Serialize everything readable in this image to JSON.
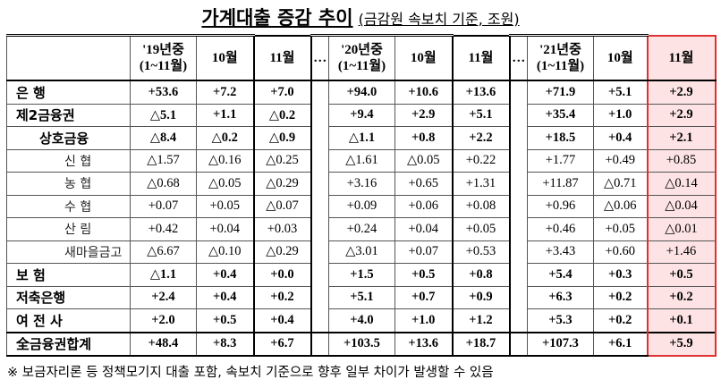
{
  "header": {
    "title": "가계대출 증감 추이",
    "subtitle": "(금감원 속보치 기준, 조원)"
  },
  "table": {
    "columns": [
      "'19년중\n(1~11월)",
      "10월",
      "11월",
      "…",
      "'20년중\n(1~11월)",
      "10월",
      "11월",
      "…",
      "'21년중\n(1~11월)",
      "10월",
      "11월"
    ],
    "rows": [
      {
        "label": "은    행",
        "values": [
          "+53.6",
          "+7.2",
          "+7.0",
          "+94.0",
          "+10.6",
          "+13.6",
          "+71.9",
          "+5.1",
          "+2.9"
        ]
      },
      {
        "label": "제2금융권",
        "values": [
          "△5.1",
          "+1.1",
          "△0.2",
          "+9.4",
          "+2.9",
          "+5.1",
          "+35.4",
          "+1.0",
          "+2.9"
        ]
      },
      {
        "label": "상호금융",
        "values": [
          "△8.4",
          "△0.2",
          "△0.9",
          "△1.1",
          "+0.8",
          "+2.2",
          "+18.5",
          "+0.4",
          "+2.1"
        ]
      },
      {
        "label": "신  협",
        "values": [
          "△1.57",
          "△0.16",
          "△0.25",
          "△1.61",
          "△0.05",
          "+0.22",
          "+1.77",
          "+0.49",
          "+0.85"
        ]
      },
      {
        "label": "농  협",
        "values": [
          "△0.68",
          "△0.05",
          "△0.29",
          "+3.16",
          "+0.65",
          "+1.31",
          "+11.87",
          "△0.71",
          "△0.14"
        ]
      },
      {
        "label": "수  협",
        "values": [
          "+0.07",
          "+0.05",
          "△0.07",
          "+0.09",
          "+0.06",
          "+0.08",
          "+0.96",
          "△0.06",
          "△0.04"
        ]
      },
      {
        "label": "산  림",
        "values": [
          "+0.42",
          "+0.04",
          "+0.03",
          "+0.24",
          "+0.04",
          "+0.05",
          "+0.46",
          "+0.05",
          "△0.01"
        ]
      },
      {
        "label": "새마을금고",
        "values": [
          "△6.67",
          "△0.10",
          "△0.29",
          "△3.01",
          "+0.07",
          "+0.53",
          "+3.43",
          "+0.60",
          "+1.46"
        ]
      },
      {
        "label": "보    험",
        "values": [
          "△1.1",
          "+0.4",
          "+0.0",
          "+1.5",
          "+0.5",
          "+0.8",
          "+5.4",
          "+0.3",
          "+0.5"
        ]
      },
      {
        "label": "저축은행",
        "values": [
          "+2.4",
          "+0.4",
          "+0.2",
          "+5.1",
          "+0.7",
          "+0.9",
          "+6.3",
          "+0.2",
          "+0.2"
        ]
      },
      {
        "label": "여 전 사",
        "values": [
          "+2.0",
          "+0.5",
          "+0.4",
          "+4.0",
          "+1.0",
          "+1.2",
          "+5.3",
          "+0.2",
          "+0.1"
        ]
      },
      {
        "label": "全금융권합계",
        "values": [
          "+48.4",
          "+8.3",
          "+6.7",
          "+103.5",
          "+13.6",
          "+18.7",
          "+107.3",
          "+6.1",
          "+5.9"
        ]
      }
    ]
  },
  "footnote": "※ 보금자리론 등 정책모기지 대출 포함, 속보치 기준으로 향후 일부 차이가 발생할 수 있음"
}
